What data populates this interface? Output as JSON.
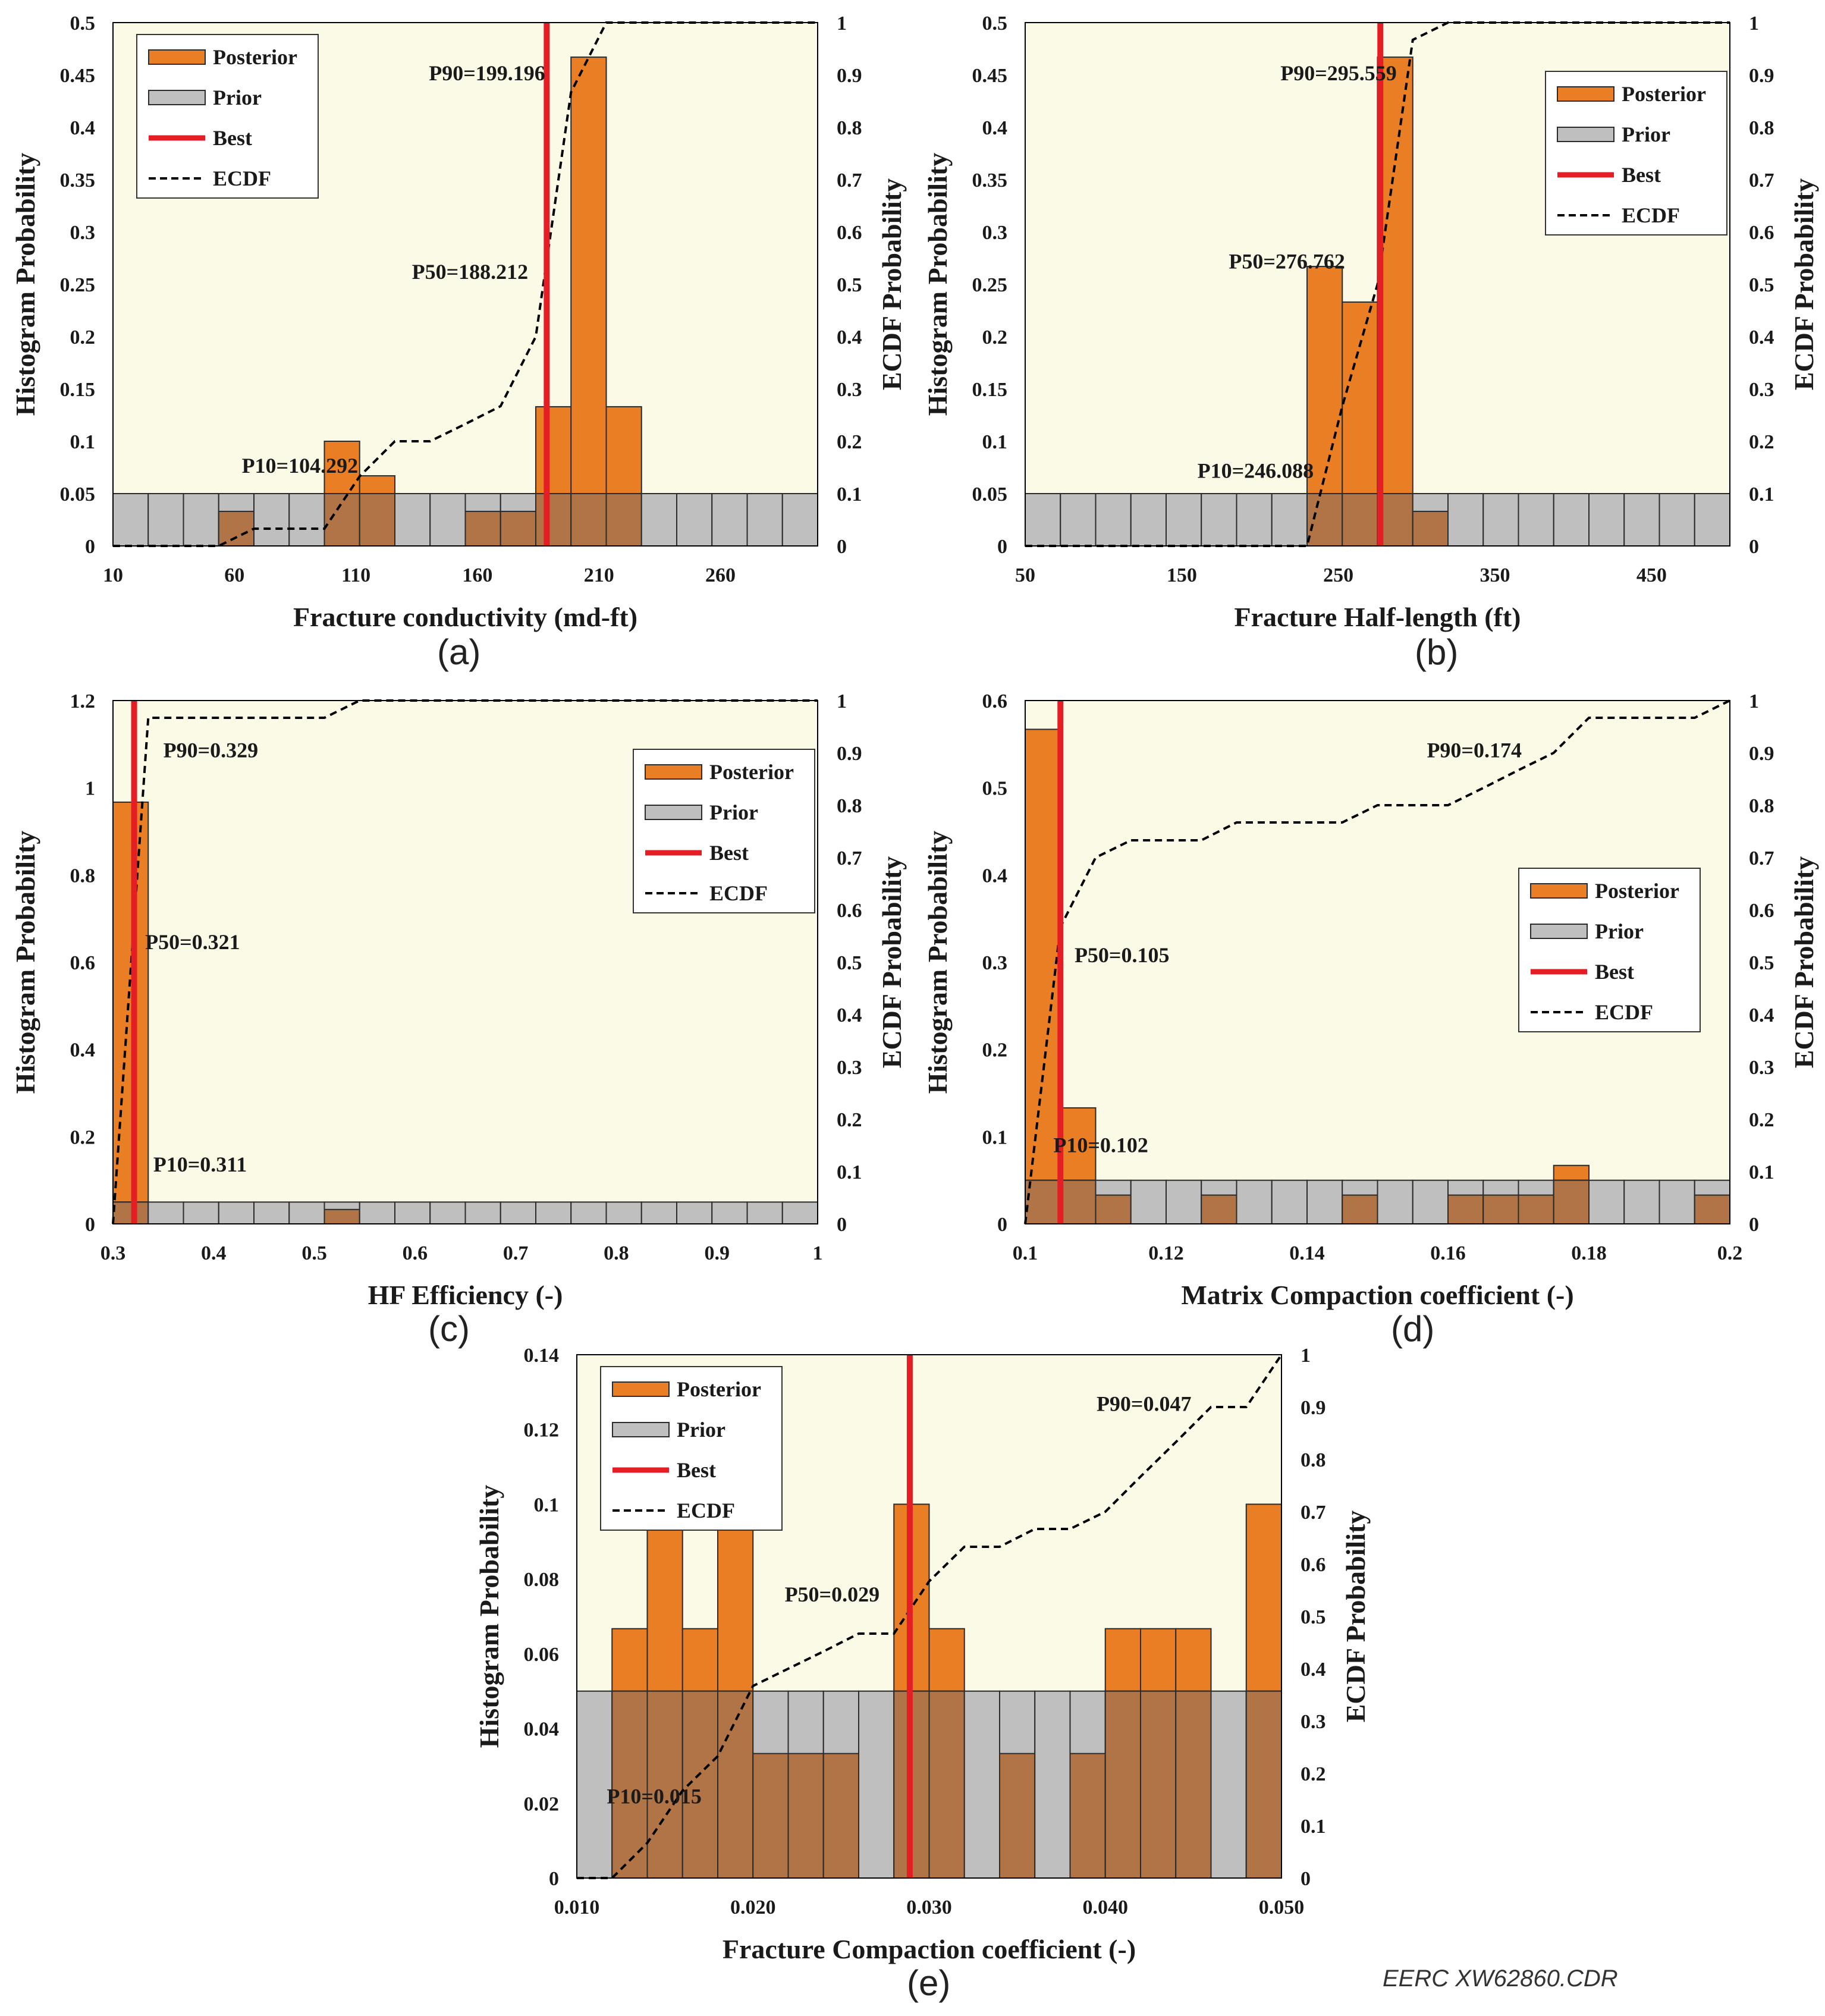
{
  "legend_labels": {
    "posterior": "Posterior",
    "prior": "Prior",
    "best": "Best",
    "ecdf": "ECDF"
  },
  "colors": {
    "plot_bg": "#fafae6",
    "posterior": "#ea7e24",
    "prior": "#bfbfbf",
    "overlap": "#b07447",
    "best": "#e51e25",
    "ecdf": "#000000",
    "frame": "#000000"
  },
  "footer": "EERC XW62860.CDR",
  "chart_data": [
    {
      "id": "a",
      "caption": "(a)",
      "type": "bar",
      "xlabel": "Fracture conductivity (md-ft)",
      "ylabel": "Histogram Probability",
      "y2label": "ECDF Probability",
      "xlim": [
        10,
        300
      ],
      "ylim": [
        0,
        0.5
      ],
      "y2lim": [
        0,
        1
      ],
      "xticks": [
        10,
        60,
        110,
        160,
        210,
        260
      ],
      "xtick_labels": [
        "10",
        "60",
        "110",
        "160",
        "210",
        "260"
      ],
      "yticks": [
        0,
        0.05,
        0.1,
        0.15,
        0.2,
        0.25,
        0.3,
        0.35,
        0.4,
        0.45,
        0.5
      ],
      "ytick_labels": [
        "0",
        "0.05",
        "0.1",
        "0.15",
        "0.2",
        "0.25",
        "0.3",
        "0.35",
        "0.4",
        "0.45",
        "0.5"
      ],
      "y2ticks": [
        0,
        0.1,
        0.2,
        0.3,
        0.4,
        0.5,
        0.6,
        0.7,
        0.8,
        0.9,
        1
      ],
      "y2tick_labels": [
        "0",
        "0.1",
        "0.2",
        "0.3",
        "0.4",
        "0.5",
        "0.6",
        "0.7",
        "0.8",
        "0.9",
        "1"
      ],
      "bin_edges": [
        10,
        24.5,
        39,
        53.5,
        68,
        82.5,
        97,
        111.5,
        126,
        140.5,
        155,
        169.5,
        184,
        198.5,
        213,
        227.5,
        242,
        256.5,
        271,
        285.5,
        300
      ],
      "prior": [
        0.05,
        0.05,
        0.05,
        0.05,
        0.05,
        0.05,
        0.05,
        0.05,
        0.05,
        0.05,
        0.05,
        0.05,
        0.05,
        0.05,
        0.05,
        0.05,
        0.05,
        0.05,
        0.05,
        0.05
      ],
      "posterior": [
        0,
        0,
        0,
        0.033,
        0,
        0,
        0.1,
        0.067,
        0,
        0,
        0.033,
        0.033,
        0.133,
        0.467,
        0.133,
        0,
        0,
        0,
        0,
        0
      ],
      "best": 188.5,
      "ecdf": {
        "x": [
          10,
          53.5,
          68,
          97,
          111.5,
          126,
          140.5,
          155,
          169.5,
          184,
          198.5,
          213,
          300
        ],
        "y": [
          0,
          0,
          0.033,
          0.033,
          0.133,
          0.2,
          0.2,
          0.233,
          0.267,
          0.4,
          0.867,
          1,
          1
        ]
      },
      "annotations": [
        {
          "text": "P90=199.196",
          "x": 140,
          "y": 0.445
        },
        {
          "text": "P50=188.212",
          "x": 133,
          "y": 0.255
        },
        {
          "text": "P10=104.292",
          "x": 63,
          "y": 0.07
        }
      ],
      "legend_position": "top-left"
    },
    {
      "id": "b",
      "caption": "(b)",
      "type": "bar",
      "xlabel": "Fracture Half-length (ft)",
      "ylabel": "Histogram Probability",
      "y2label": "ECDF Probability",
      "xlim": [
        50,
        500
      ],
      "ylim": [
        0,
        0.5
      ],
      "y2lim": [
        0,
        1
      ],
      "xticks": [
        50,
        150,
        250,
        350,
        450
      ],
      "xtick_labels": [
        "50",
        "150",
        "250",
        "350",
        "450"
      ],
      "yticks": [
        0,
        0.05,
        0.1,
        0.15,
        0.2,
        0.25,
        0.3,
        0.35,
        0.4,
        0.45,
        0.5
      ],
      "ytick_labels": [
        "0",
        "0.05",
        "0.1",
        "0.15",
        "0.2",
        "0.25",
        "0.3",
        "0.35",
        "0.4",
        "0.45",
        "0.5"
      ],
      "y2ticks": [
        0,
        0.1,
        0.2,
        0.3,
        0.4,
        0.5,
        0.6,
        0.7,
        0.8,
        0.9,
        1
      ],
      "y2tick_labels": [
        "0",
        "0.1",
        "0.2",
        "0.3",
        "0.4",
        "0.5",
        "0.6",
        "0.7",
        "0.8",
        "0.9",
        "1"
      ],
      "bin_edges": [
        50,
        72.5,
        95,
        117.5,
        140,
        162.5,
        185,
        207.5,
        230,
        252.5,
        275,
        297.5,
        320,
        342.5,
        365,
        387.5,
        410,
        432.5,
        455,
        477.5,
        500
      ],
      "prior": [
        0.05,
        0.05,
        0.05,
        0.05,
        0.05,
        0.05,
        0.05,
        0.05,
        0.05,
        0.05,
        0.05,
        0.05,
        0.05,
        0.05,
        0.05,
        0.05,
        0.05,
        0.05,
        0.05,
        0.05
      ],
      "posterior": [
        0,
        0,
        0,
        0,
        0,
        0,
        0,
        0,
        0.267,
        0.233,
        0.467,
        0.033,
        0,
        0,
        0,
        0,
        0,
        0,
        0,
        0
      ],
      "best": 276.8,
      "ecdf": {
        "x": [
          50,
          230,
          252.5,
          275,
          297.5,
          320,
          500
        ],
        "y": [
          0,
          0,
          0.267,
          0.5,
          0.967,
          1,
          1
        ]
      },
      "annotations": [
        {
          "text": "P90=295.559",
          "x": 213,
          "y": 0.445
        },
        {
          "text": "P50=276.762",
          "x": 180,
          "y": 0.265
        },
        {
          "text": "P10=246.088",
          "x": 160,
          "y": 0.065
        }
      ],
      "legend_position": "top-right"
    },
    {
      "id": "c",
      "caption": "(c)",
      "type": "bar",
      "xlabel": "HF Efficiency (-)",
      "ylabel": "Histogram Probability",
      "y2label": "ECDF Probability",
      "xlim": [
        0.3,
        1
      ],
      "ylim": [
        0,
        1.2
      ],
      "y2lim": [
        0,
        1
      ],
      "xticks": [
        0.3,
        0.4,
        0.5,
        0.6,
        0.7,
        0.8,
        0.9,
        1
      ],
      "xtick_labels": [
        "0.3",
        "0.4",
        "0.5",
        "0.6",
        "0.7",
        "0.8",
        "0.9",
        "1"
      ],
      "yticks": [
        0,
        0.2,
        0.4,
        0.6,
        0.8,
        1,
        1.2
      ],
      "ytick_labels": [
        "0",
        "0.2",
        "0.4",
        "0.6",
        "0.8",
        "1",
        "1.2"
      ],
      "y2ticks": [
        0,
        0.1,
        0.2,
        0.3,
        0.4,
        0.5,
        0.6,
        0.7,
        0.8,
        0.9,
        1
      ],
      "y2tick_labels": [
        "0",
        "0.1",
        "0.2",
        "0.3",
        "0.4",
        "0.5",
        "0.6",
        "0.7",
        "0.8",
        "0.9",
        "1"
      ],
      "bin_edges": [
        0.3,
        0.335,
        0.37,
        0.405,
        0.44,
        0.475,
        0.51,
        0.545,
        0.58,
        0.615,
        0.65,
        0.685,
        0.72,
        0.755,
        0.79,
        0.825,
        0.86,
        0.895,
        0.93,
        0.965,
        1
      ],
      "prior": [
        0.05,
        0.05,
        0.05,
        0.05,
        0.05,
        0.05,
        0.05,
        0.05,
        0.05,
        0.05,
        0.05,
        0.05,
        0.05,
        0.05,
        0.05,
        0.05,
        0.05,
        0.05,
        0.05,
        0.05
      ],
      "posterior": [
        0.967,
        0,
        0,
        0,
        0,
        0,
        0.033,
        0,
        0,
        0,
        0,
        0,
        0,
        0,
        0,
        0,
        0,
        0,
        0,
        0
      ],
      "best": 0.321,
      "ecdf": {
        "x": [
          0.3,
          0.335,
          0.51,
          0.545,
          1
        ],
        "y": [
          0,
          0.967,
          0.967,
          1,
          1
        ]
      },
      "annotations": [
        {
          "text": "P90=0.329",
          "x": 0.35,
          "y": 1.07
        },
        {
          "text": "P50=0.321",
          "x": 0.332,
          "y": 0.63
        },
        {
          "text": "P10=0.311",
          "x": 0.34,
          "y": 0.12
        }
      ],
      "legend_position": "top-right"
    },
    {
      "id": "d",
      "caption": "(d)",
      "type": "bar",
      "xlabel": "Matrix Compaction coefficient (-)",
      "ylabel": "Histogram Probability",
      "y2label": "ECDF Probability",
      "xlim": [
        0.1,
        0.2
      ],
      "ylim": [
        0,
        0.6
      ],
      "y2lim": [
        0,
        1
      ],
      "xticks": [
        0.1,
        0.12,
        0.14,
        0.16,
        0.18,
        0.2
      ],
      "xtick_labels": [
        "0.1",
        "0.12",
        "0.14",
        "0.16",
        "0.18",
        "0.2"
      ],
      "yticks": [
        0,
        0.1,
        0.2,
        0.3,
        0.4,
        0.5,
        0.6
      ],
      "ytick_labels": [
        "0",
        "0.1",
        "0.2",
        "0.3",
        "0.4",
        "0.5",
        "0.6"
      ],
      "y2ticks": [
        0,
        0.1,
        0.2,
        0.3,
        0.4,
        0.5,
        0.6,
        0.7,
        0.8,
        0.9,
        1
      ],
      "y2tick_labels": [
        "0",
        "0.1",
        "0.2",
        "0.3",
        "0.4",
        "0.5",
        "0.6",
        "0.7",
        "0.8",
        "0.9",
        "1"
      ],
      "bin_edges": [
        0.1,
        0.105,
        0.11,
        0.115,
        0.12,
        0.125,
        0.13,
        0.135,
        0.14,
        0.145,
        0.15,
        0.155,
        0.16,
        0.165,
        0.17,
        0.175,
        0.18,
        0.185,
        0.19,
        0.195,
        0.2
      ],
      "prior": [
        0.05,
        0.05,
        0.05,
        0.05,
        0.05,
        0.05,
        0.05,
        0.05,
        0.05,
        0.05,
        0.05,
        0.05,
        0.05,
        0.05,
        0.05,
        0.05,
        0.05,
        0.05,
        0.05,
        0.05
      ],
      "posterior": [
        0.567,
        0.133,
        0.033,
        0,
        0,
        0.033,
        0,
        0,
        0,
        0.033,
        0,
        0,
        0.033,
        0.033,
        0.033,
        0.067,
        0,
        0,
        0,
        0.033
      ],
      "best": 0.105,
      "ecdf": {
        "x": [
          0.1,
          0.105,
          0.11,
          0.115,
          0.12,
          0.125,
          0.13,
          0.135,
          0.14,
          0.145,
          0.15,
          0.155,
          0.16,
          0.165,
          0.17,
          0.175,
          0.18,
          0.185,
          0.19,
          0.195,
          0.2
        ],
        "y": [
          0,
          0.567,
          0.7,
          0.733,
          0.733,
          0.733,
          0.767,
          0.767,
          0.767,
          0.767,
          0.8,
          0.8,
          0.8,
          0.833,
          0.867,
          0.9,
          0.967,
          0.967,
          0.967,
          0.967,
          1
        ]
      },
      "annotations": [
        {
          "text": "P90=0.174",
          "x": 0.157,
          "y": 0.535
        },
        {
          "text": "P50=0.105",
          "x": 0.107,
          "y": 0.3
        },
        {
          "text": "P10=0.102",
          "x": 0.104,
          "y": 0.082
        }
      ],
      "legend_position": "middle-right"
    },
    {
      "id": "e",
      "caption": "(e)",
      "type": "bar",
      "xlabel": "Fracture Compaction coefficient (-)",
      "ylabel": "Histogram Probability",
      "y2label": "ECDF Probability",
      "xlim": [
        0.01,
        0.05
      ],
      "ylim": [
        0,
        0.14
      ],
      "y2lim": [
        0,
        1
      ],
      "xticks": [
        0.01,
        0.02,
        0.03,
        0.04,
        0.05
      ],
      "xtick_labels": [
        "0.010",
        "0.020",
        "0.030",
        "0.040",
        "0.050"
      ],
      "yticks": [
        0,
        0.02,
        0.04,
        0.06,
        0.08,
        0.1,
        0.12,
        0.14
      ],
      "ytick_labels": [
        "0",
        "0.02",
        "0.04",
        "0.06",
        "0.08",
        "0.1",
        "0.12",
        "0.14"
      ],
      "y2ticks": [
        0,
        0.1,
        0.2,
        0.3,
        0.4,
        0.5,
        0.6,
        0.7,
        0.8,
        0.9,
        1
      ],
      "y2tick_labels": [
        "0",
        "0.1",
        "0.2",
        "0.3",
        "0.4",
        "0.5",
        "0.6",
        "0.7",
        "0.8",
        "0.9",
        "1"
      ],
      "bin_edges": [
        0.01,
        0.012,
        0.014,
        0.016,
        0.018,
        0.02,
        0.022,
        0.024,
        0.026,
        0.028,
        0.03,
        0.032,
        0.034,
        0.036,
        0.038,
        0.04,
        0.042,
        0.044,
        0.046,
        0.048,
        0.05
      ],
      "prior": [
        0.05,
        0.05,
        0.05,
        0.05,
        0.05,
        0.05,
        0.05,
        0.05,
        0.05,
        0.05,
        0.05,
        0.05,
        0.05,
        0.05,
        0.05,
        0.05,
        0.05,
        0.05,
        0.05,
        0.05
      ],
      "posterior": [
        0,
        0.0667,
        0.1,
        0.0667,
        0.1,
        0.0333,
        0.0333,
        0.0333,
        0,
        0.1,
        0.0667,
        0,
        0.0333,
        0,
        0.0333,
        0.0667,
        0.0667,
        0.0667,
        0,
        0.1
      ],
      "best": 0.0289,
      "ecdf": {
        "x": [
          0.01,
          0.012,
          0.014,
          0.016,
          0.018,
          0.02,
          0.022,
          0.024,
          0.026,
          0.028,
          0.03,
          0.032,
          0.034,
          0.036,
          0.038,
          0.04,
          0.042,
          0.044,
          0.046,
          0.048,
          0.05
        ],
        "y": [
          0,
          0,
          0.067,
          0.167,
          0.233,
          0.367,
          0.4,
          0.433,
          0.467,
          0.467,
          0.567,
          0.633,
          0.633,
          0.667,
          0.667,
          0.7,
          0.767,
          0.833,
          0.9,
          0.9,
          1
        ]
      },
      "annotations": [
        {
          "text": "P90=0.047",
          "x": 0.0395,
          "y": 0.125
        },
        {
          "text": "P50=0.029",
          "x": 0.0218,
          "y": 0.074
        },
        {
          "text": "P10=0.015",
          "x": 0.0117,
          "y": 0.02
        }
      ],
      "legend_position": "top-left"
    }
  ]
}
